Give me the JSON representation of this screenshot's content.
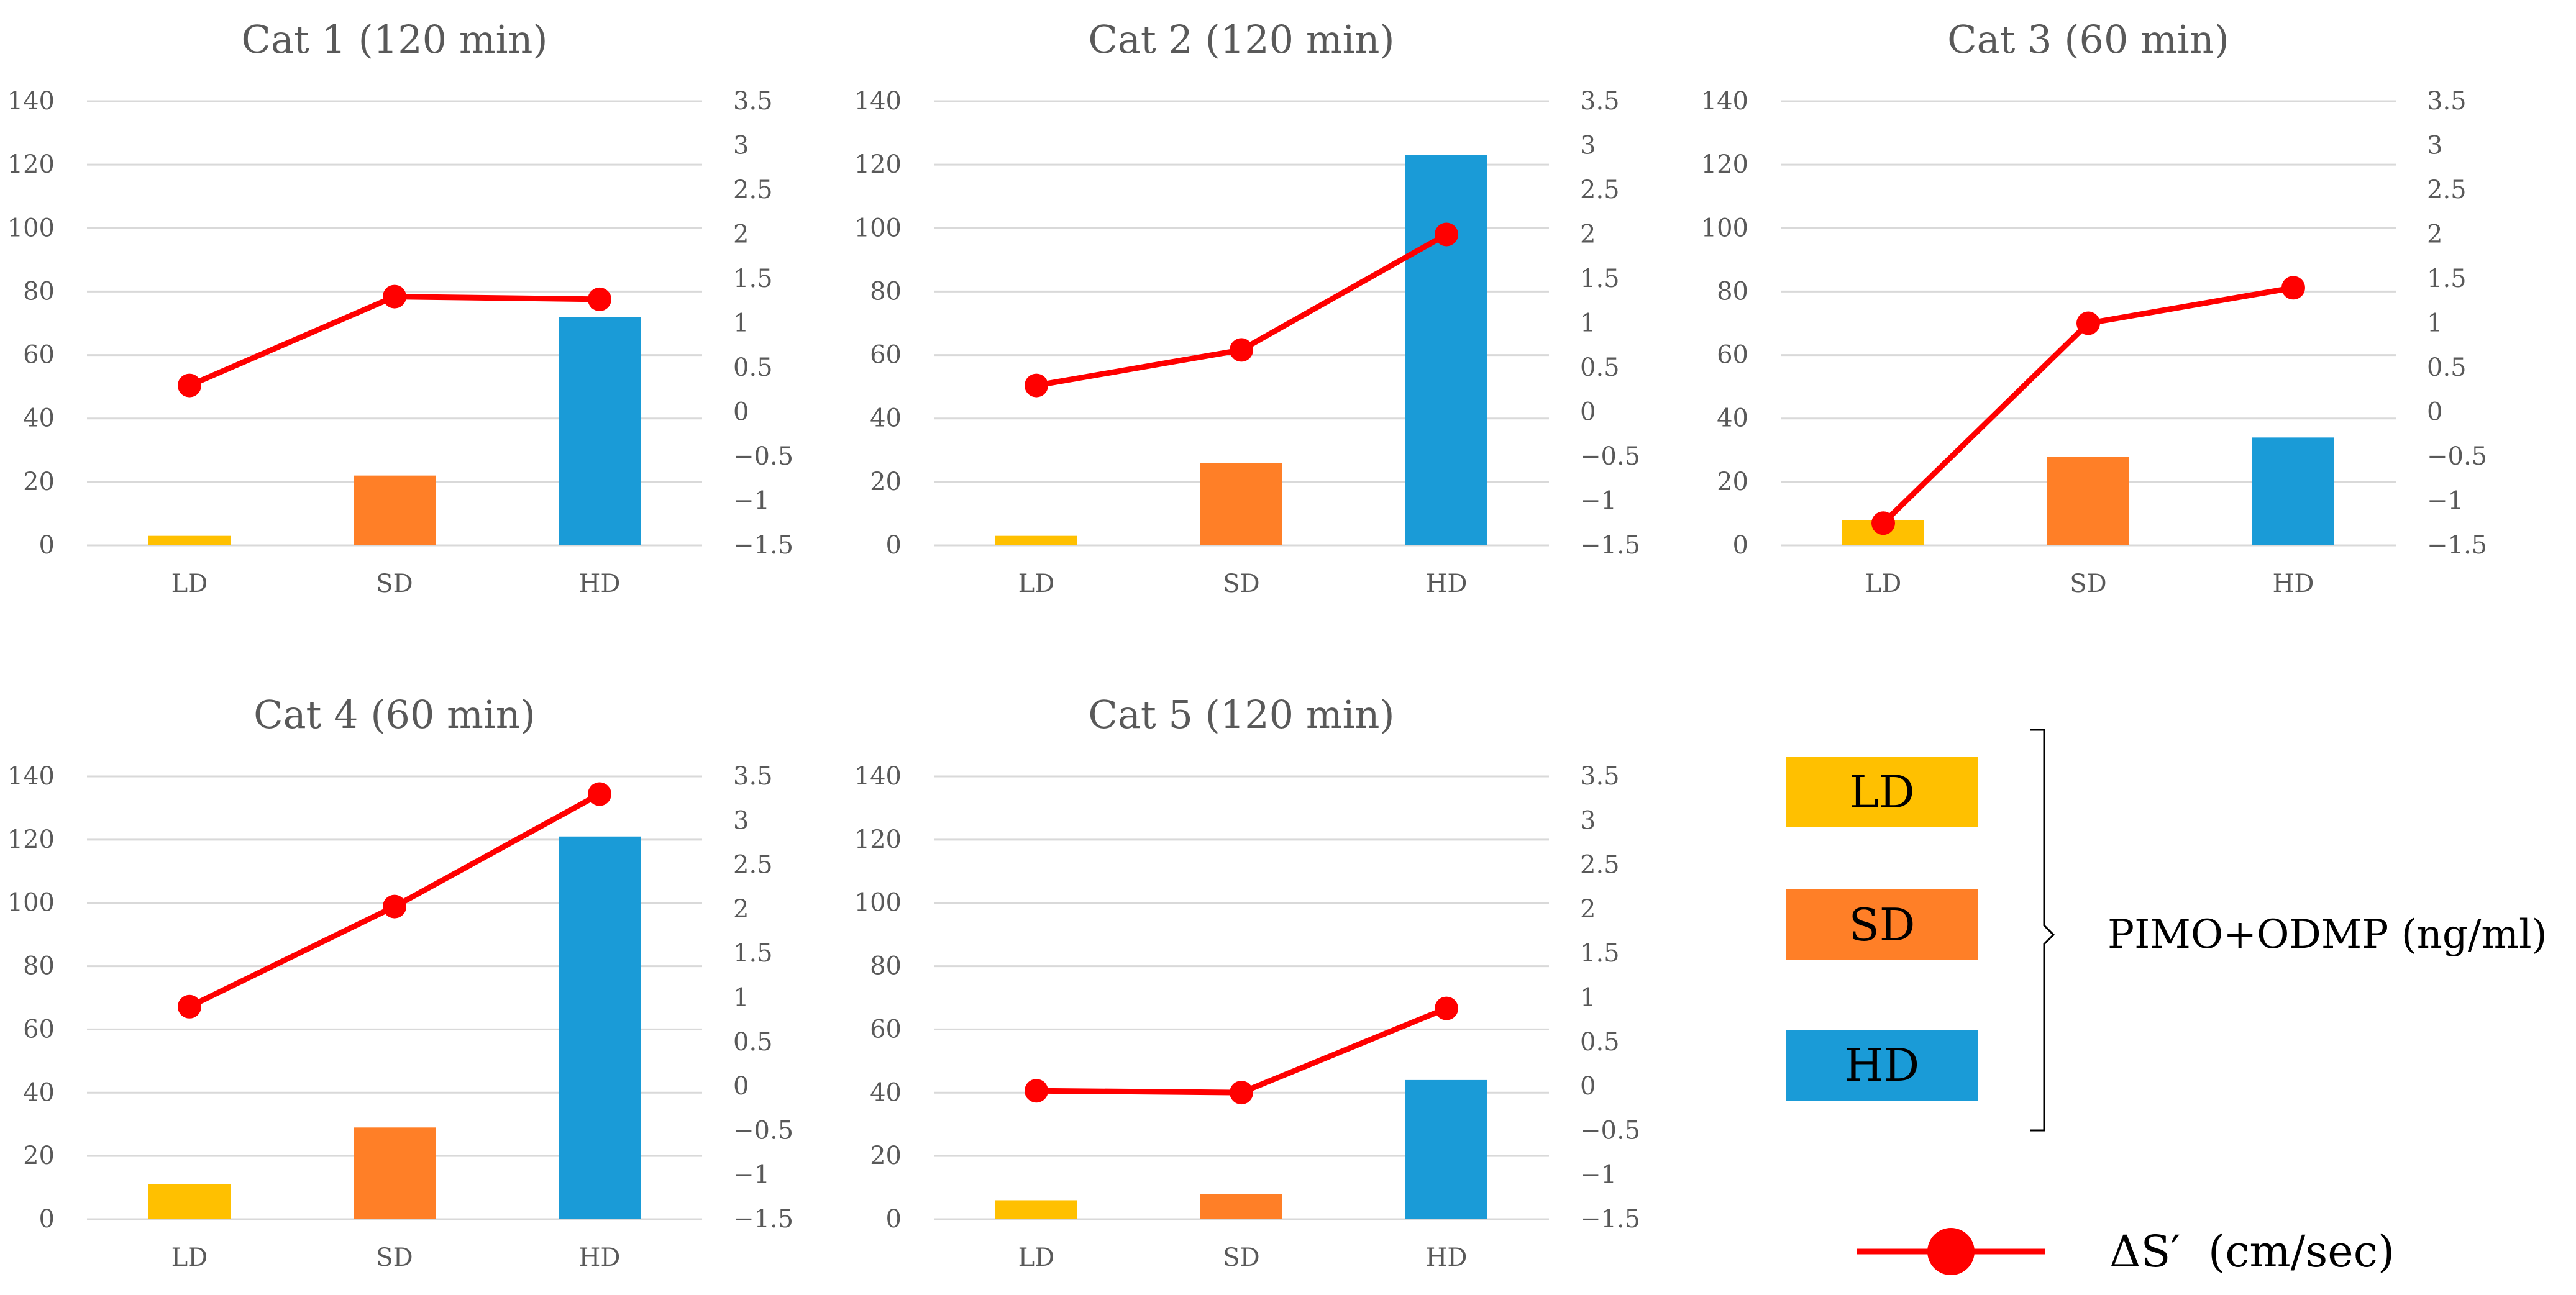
{
  "chart_data": [
    {
      "type": "bar",
      "title": "Cat 1 (120 min)",
      "categories": [
        "LD",
        "SD",
        "HD"
      ],
      "values": [
        3,
        22,
        72
      ],
      "line_values": [
        0.3,
        1.3,
        1.27
      ],
      "ylim": [
        0,
        140
      ],
      "y_ticks": [
        "0",
        "20",
        "40",
        "60",
        "80",
        "100",
        "120",
        "140"
      ],
      "y2lim": [
        -1.5,
        3.5
      ],
      "y2_ticks": [
        "-1.5",
        "-1",
        "-0.5",
        "0",
        "0.5",
        "1",
        "1.5",
        "2",
        "2.5",
        "3",
        "3.5"
      ]
    },
    {
      "type": "bar",
      "title": "Cat 2 (120 min)",
      "categories": [
        "LD",
        "SD",
        "HD"
      ],
      "values": [
        3,
        26,
        123
      ],
      "line_values": [
        0.3,
        0.7,
        2.0
      ],
      "ylim": [
        0,
        140
      ],
      "y_ticks": [
        "0",
        "20",
        "40",
        "60",
        "80",
        "100",
        "120",
        "140"
      ],
      "y2lim": [
        -1.5,
        3.5
      ],
      "y2_ticks": [
        "-1.5",
        "-1",
        "-0.5",
        "0",
        "0.5",
        "1",
        "1.5",
        "2",
        "2.5",
        "3",
        "3.5"
      ]
    },
    {
      "type": "bar",
      "title": "Cat 3 (60 min)",
      "categories": [
        "LD",
        "SD",
        "HD"
      ],
      "values": [
        8,
        28,
        34
      ],
      "line_values": [
        -1.25,
        1.0,
        1.4
      ],
      "ylim": [
        0,
        140
      ],
      "y_ticks": [
        "0",
        "20",
        "40",
        "60",
        "80",
        "100",
        "120",
        "140"
      ],
      "y2lim": [
        -1.5,
        3.5
      ],
      "y2_ticks": [
        "-1.5",
        "-1",
        "-0.5",
        "0",
        "0.5",
        "1",
        "1.5",
        "2",
        "2.5",
        "3",
        "3.5"
      ]
    },
    {
      "type": "bar",
      "title": "Cat 4 (60 min)",
      "categories": [
        "LD",
        "SD",
        "HD"
      ],
      "values": [
        11,
        29,
        121
      ],
      "line_values": [
        0.9,
        2.03,
        3.3
      ],
      "ylim": [
        0,
        140
      ],
      "y_ticks": [
        "0",
        "20",
        "40",
        "60",
        "80",
        "100",
        "120",
        "140"
      ],
      "y2lim": [
        -1.5,
        3.5
      ],
      "y2_ticks": [
        "-1.5",
        "-1",
        "-0.5",
        "0",
        "0.5",
        "1",
        "1.5",
        "2",
        "2.5",
        "3",
        "3.5"
      ]
    },
    {
      "type": "bar",
      "title": "Cat 5 (120 min)",
      "categories": [
        "LD",
        "SD",
        "HD"
      ],
      "values": [
        6,
        8,
        44
      ],
      "line_values": [
        -0.05,
        -0.07,
        0.88
      ],
      "ylim": [
        0,
        140
      ],
      "y_ticks": [
        "0",
        "20",
        "40",
        "60",
        "80",
        "100",
        "120",
        "140"
      ],
      "y2lim": [
        -1.5,
        3.5
      ],
      "y2_ticks": [
        "-1.5",
        "-1",
        "-0.5",
        "0",
        "0.5",
        "1",
        "1.5",
        "2",
        "2.5",
        "3",
        "3.5"
      ]
    }
  ],
  "legend": {
    "items": [
      {
        "key": "LD",
        "label": "LD",
        "color": "#FFC000"
      },
      {
        "key": "SD",
        "label": "SD",
        "color": "#FF7F27"
      },
      {
        "key": "HD",
        "label": "HD",
        "color": "#1A9BD7"
      }
    ],
    "bars_group_label": "PIMO+ODMP (ng/ml)",
    "line_label": "ΔS′  (cm/sec)",
    "line_color": "#FF0000"
  },
  "colors": {
    "grid": "#D9D9D9",
    "text": "#595959"
  }
}
